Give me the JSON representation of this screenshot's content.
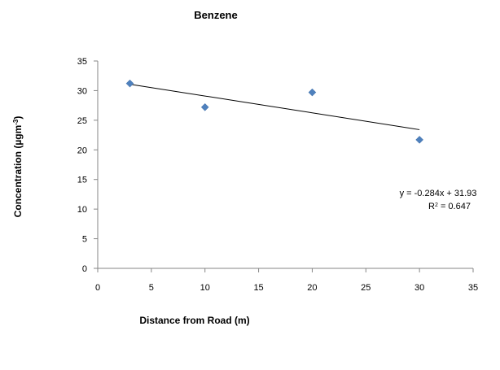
{
  "chart_data": {
    "type": "scatter",
    "title": "Benzene",
    "xlabel": "Distance from Road (m)",
    "ylabel_base": "Concentration (µgm",
    "ylabel_sup": "-3",
    "ylabel_close": ")",
    "xlim": [
      0,
      35
    ],
    "ylim": [
      0,
      35
    ],
    "xticks": [
      0,
      5,
      10,
      15,
      20,
      25,
      30,
      35
    ],
    "yticks": [
      0,
      5,
      10,
      15,
      20,
      25,
      30,
      35
    ],
    "grid": false,
    "marker_shape": "diamond",
    "marker_color": "#4f81bd",
    "trendline_color": "#000000",
    "points": [
      {
        "x": 3,
        "y": 31.2
      },
      {
        "x": 10,
        "y": 27.2
      },
      {
        "x": 20,
        "y": 29.7
      },
      {
        "x": 30,
        "y": 21.7
      }
    ],
    "trendline": {
      "slope": -0.284,
      "intercept": 31.93,
      "x_start": 3,
      "x_end": 30
    },
    "equation_label": "y = -0.284x + 31.93",
    "r2_label_prefix": "R",
    "r2_label_sup": "2",
    "r2_label_value": " = 0.647"
  }
}
